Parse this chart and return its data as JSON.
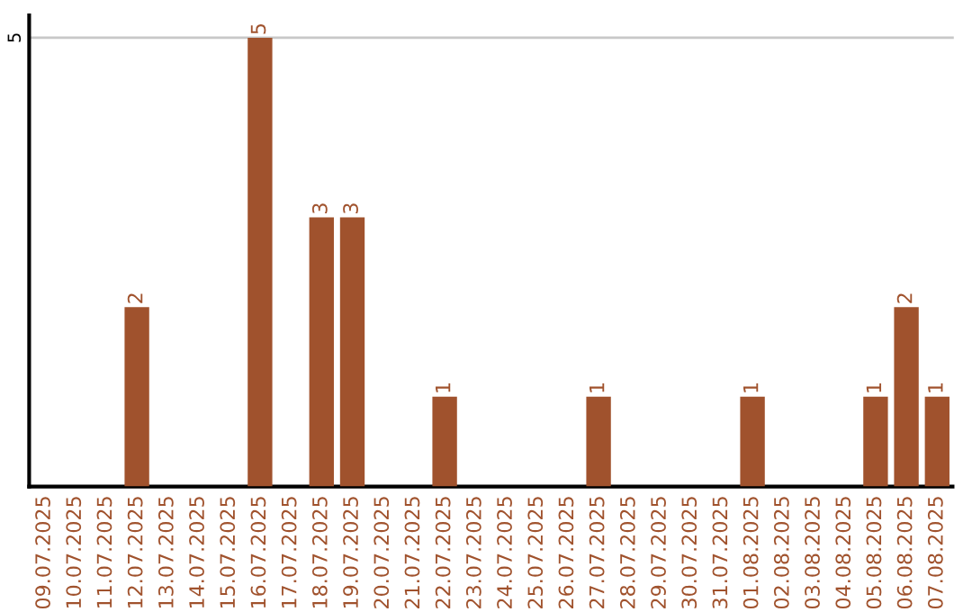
{
  "chart_data": {
    "type": "bar",
    "categories": [
      "09.07.2025",
      "10.07.2025",
      "11.07.2025",
      "12.07.2025",
      "13.07.2025",
      "14.07.2025",
      "15.07.2025",
      "16.07.2025",
      "17.07.2025",
      "18.07.2025",
      "19.07.2025",
      "20.07.2025",
      "21.07.2025",
      "22.07.2025",
      "23.07.2025",
      "24.07.2025",
      "25.07.2025",
      "26.07.2025",
      "27.07.2025",
      "28.07.2025",
      "29.07.2025",
      "30.07.2025",
      "31.07.2025",
      "01.08.2025",
      "02.08.2025",
      "03.08.2025",
      "04.08.2025",
      "05.08.2025",
      "06.08.2025",
      "07.08.2025"
    ],
    "values": [
      0,
      0,
      0,
      2,
      0,
      0,
      0,
      5,
      0,
      3,
      3,
      0,
      0,
      1,
      0,
      0,
      0,
      0,
      1,
      0,
      0,
      0,
      0,
      1,
      0,
      0,
      0,
      1,
      2,
      1
    ],
    "value_labels": [
      null,
      null,
      null,
      "2",
      null,
      null,
      null,
      "5",
      null,
      "3",
      "3",
      null,
      null,
      "1",
      null,
      null,
      null,
      null,
      "1",
      null,
      null,
      null,
      null,
      "1",
      null,
      null,
      null,
      "1",
      "2",
      "1"
    ],
    "color": "#a0522d",
    "ylim": [
      0,
      5.25
    ],
    "yticks": [
      {
        "value": 0,
        "label": null
      },
      5
    ],
    "grid": "y"
  }
}
